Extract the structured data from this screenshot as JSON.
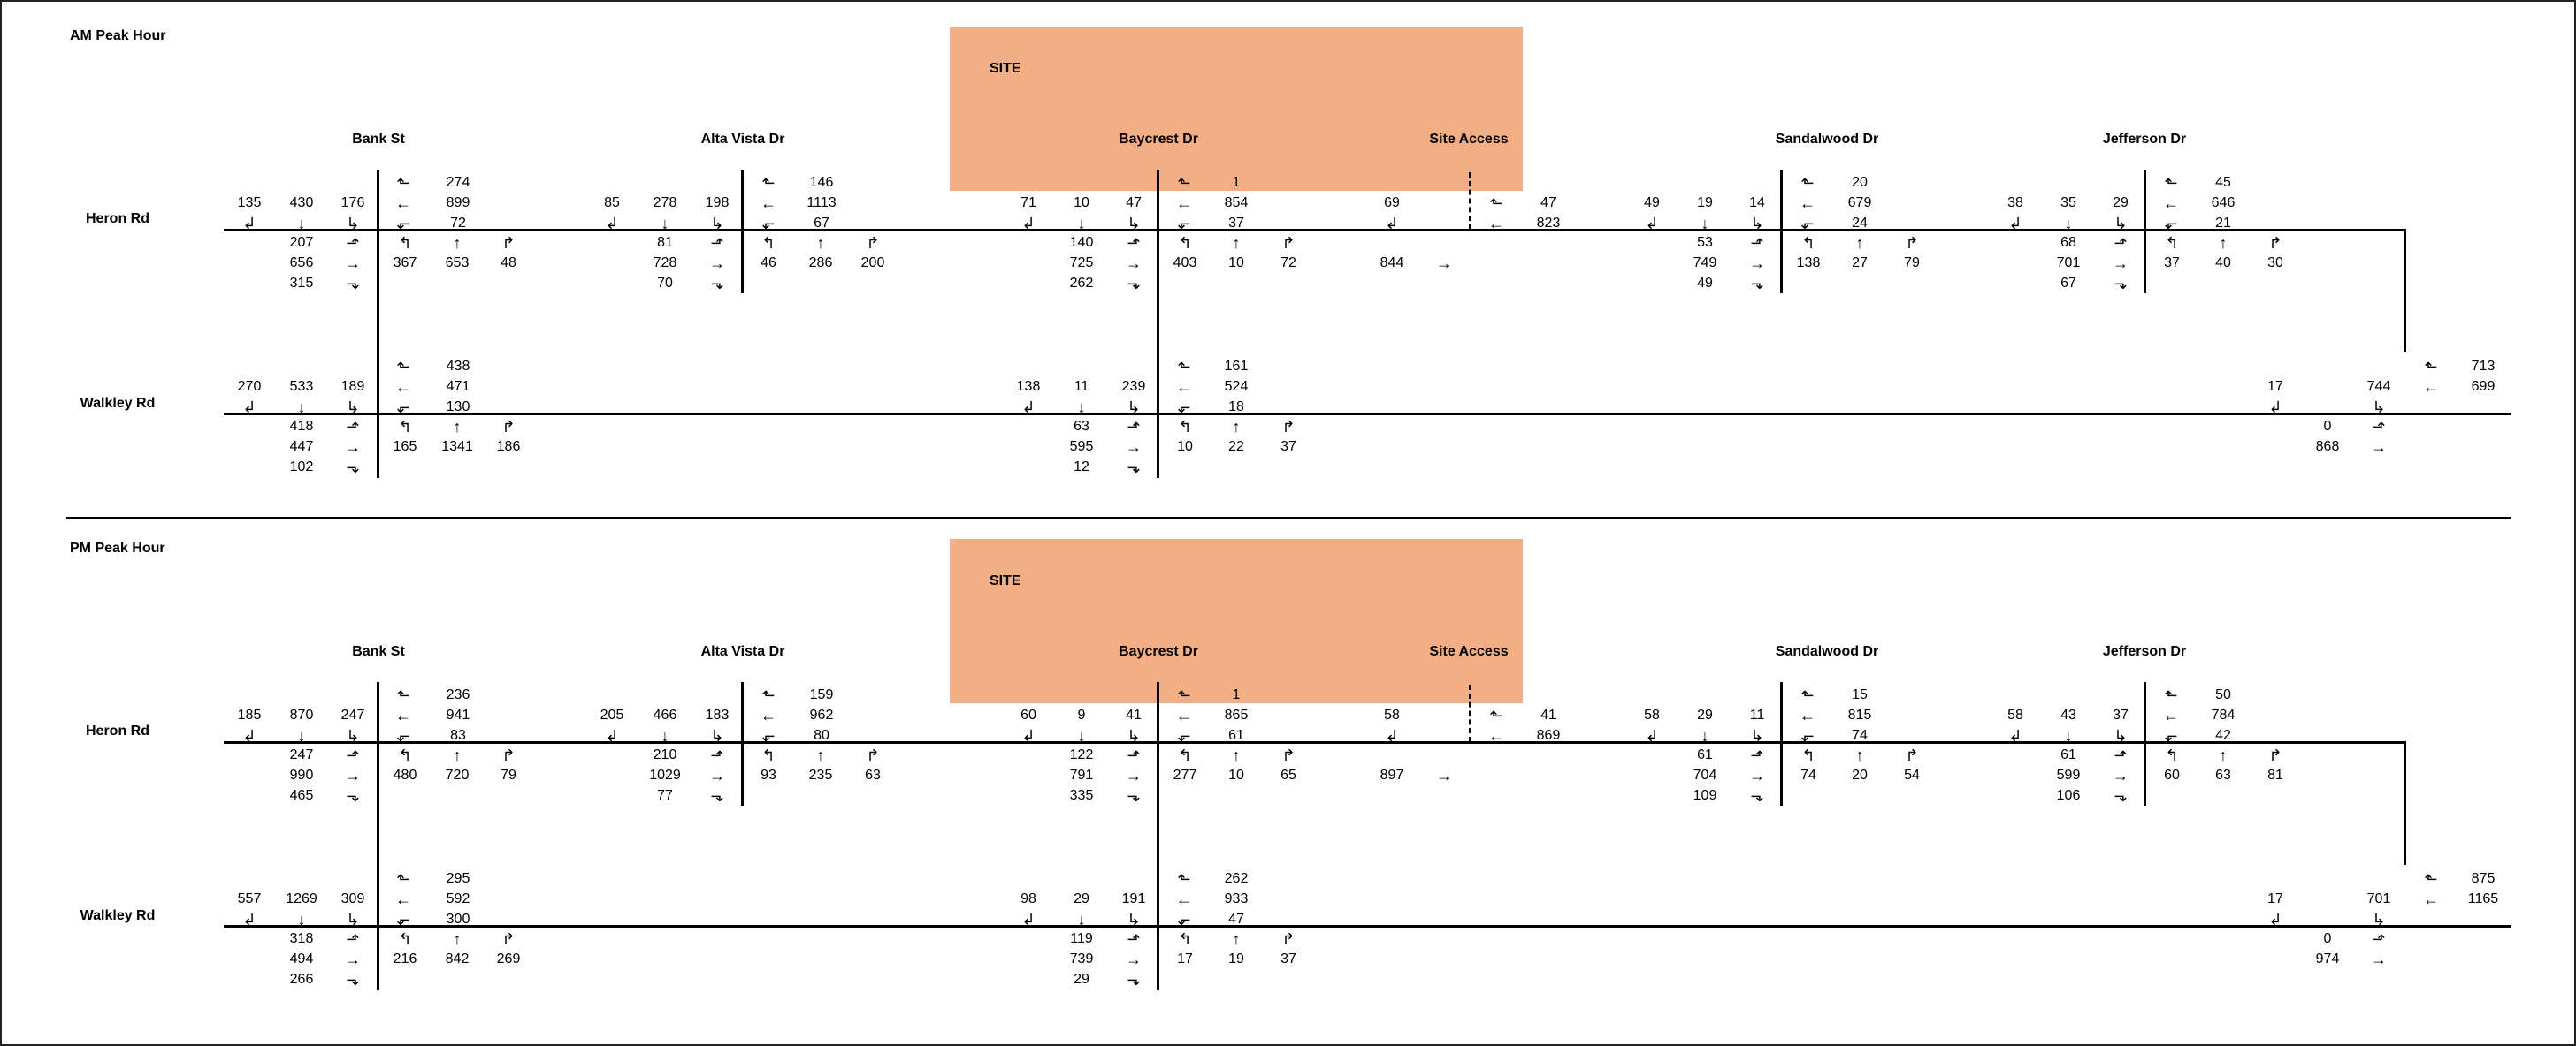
{
  "site_color": "#f4ae86",
  "line_color": "#000000",
  "panels": [
    {
      "id": "am",
      "title": "AM Peak Hour",
      "site_label": "SITE",
      "street_labels": {
        "bank": "Bank St",
        "alta": "Alta Vista Dr",
        "baycrest": "Baycrest Dr",
        "site_access": "Site Access",
        "sandalwood": "Sandalwood Dr",
        "jefferson": "Jefferson Dr",
        "heron": "Heron Rd",
        "walkley": "Walkley Rd"
      },
      "heron": {
        "bank": {
          "wb": [
            "274",
            "899",
            "72"
          ],
          "sb": [
            "135",
            "430",
            "176"
          ],
          "eb": [
            "207",
            "656",
            "315"
          ],
          "nb": [
            "367",
            "653",
            "48"
          ]
        },
        "alta": {
          "wb": [
            "146",
            "1113",
            "67"
          ],
          "sb": [
            "85",
            "278",
            "198"
          ],
          "eb": [
            "81",
            "728",
            "70"
          ],
          "nb": [
            "46",
            "286",
            "200"
          ]
        },
        "baycrest": {
          "wb": [
            "1",
            "854",
            "37"
          ],
          "sb": [
            "71",
            "10",
            "47"
          ],
          "eb": [
            "140",
            "725",
            "262"
          ],
          "nb": [
            "403",
            "10",
            "72"
          ]
        },
        "site": {
          "sb": "69",
          "eb": "844",
          "wb": [
            "47",
            "823"
          ]
        },
        "sandalwood": {
          "wb": [
            "20",
            "679",
            "24"
          ],
          "sb": [
            "49",
            "19",
            "14"
          ],
          "eb": [
            "53",
            "749",
            "49"
          ],
          "nb": [
            "138",
            "27",
            "79"
          ]
        },
        "jefferson": {
          "wb": [
            "45",
            "646",
            "21"
          ],
          "sb": [
            "38",
            "35",
            "29"
          ],
          "eb": [
            "68",
            "701",
            "67"
          ],
          "nb": [
            "37",
            "40",
            "30"
          ]
        }
      },
      "walkley": {
        "bank": {
          "wb": [
            "438",
            "471",
            "130"
          ],
          "sb": [
            "270",
            "533",
            "189"
          ],
          "eb": [
            "418",
            "447",
            "102"
          ],
          "nb": [
            "165",
            "1341",
            "186"
          ]
        },
        "baycrest": {
          "wb": [
            "161",
            "524",
            "18"
          ],
          "sb": [
            "138",
            "11",
            "239"
          ],
          "eb": [
            "63",
            "595",
            "12"
          ],
          "nb": [
            "10",
            "22",
            "37"
          ]
        },
        "east": {
          "sb": [
            "17",
            "744"
          ],
          "eb": [
            "0",
            "868"
          ],
          "wb": [
            "713",
            "699"
          ]
        }
      }
    },
    {
      "id": "pm",
      "title": "PM Peak Hour",
      "site_label": "SITE",
      "street_labels": {
        "bank": "Bank St",
        "alta": "Alta Vista Dr",
        "baycrest": "Baycrest Dr",
        "site_access": "Site Access",
        "sandalwood": "Sandalwood Dr",
        "jefferson": "Jefferson Dr",
        "heron": "Heron Rd",
        "walkley": "Walkley Rd"
      },
      "heron": {
        "bank": {
          "wb": [
            "236",
            "941",
            "83"
          ],
          "sb": [
            "185",
            "870",
            "247"
          ],
          "eb": [
            "247",
            "990",
            "465"
          ],
          "nb": [
            "480",
            "720",
            "79"
          ]
        },
        "alta": {
          "wb": [
            "159",
            "962",
            "80"
          ],
          "sb": [
            "205",
            "466",
            "183"
          ],
          "eb": [
            "210",
            "1029",
            "77"
          ],
          "nb": [
            "93",
            "235",
            "63"
          ]
        },
        "baycrest": {
          "wb": [
            "1",
            "865",
            "61"
          ],
          "sb": [
            "60",
            "9",
            "41"
          ],
          "eb": [
            "122",
            "791",
            "335"
          ],
          "nb": [
            "277",
            "10",
            "65"
          ]
        },
        "site": {
          "sb": "58",
          "eb": "897",
          "wb": [
            "41",
            "869"
          ]
        },
        "sandalwood": {
          "wb": [
            "15",
            "815",
            "74"
          ],
          "sb": [
            "58",
            "29",
            "11"
          ],
          "eb": [
            "61",
            "704",
            "109"
          ],
          "nb": [
            "74",
            "20",
            "54"
          ]
        },
        "jefferson": {
          "wb": [
            "50",
            "784",
            "42"
          ],
          "sb": [
            "58",
            "43",
            "37"
          ],
          "eb": [
            "61",
            "599",
            "106"
          ],
          "nb": [
            "60",
            "63",
            "81"
          ]
        }
      },
      "walkley": {
        "bank": {
          "wb": [
            "295",
            "592",
            "300"
          ],
          "sb": [
            "557",
            "1269",
            "309"
          ],
          "eb": [
            "318",
            "494",
            "266"
          ],
          "nb": [
            "216",
            "842",
            "269"
          ]
        },
        "baycrest": {
          "wb": [
            "262",
            "933",
            "47"
          ],
          "sb": [
            "98",
            "29",
            "191"
          ],
          "eb": [
            "119",
            "739",
            "29"
          ],
          "nb": [
            "17",
            "19",
            "37"
          ]
        },
        "east": {
          "sb": [
            "17",
            "701"
          ],
          "eb": [
            "0",
            "974"
          ],
          "wb": [
            "875",
            "1165"
          ]
        }
      }
    }
  ]
}
